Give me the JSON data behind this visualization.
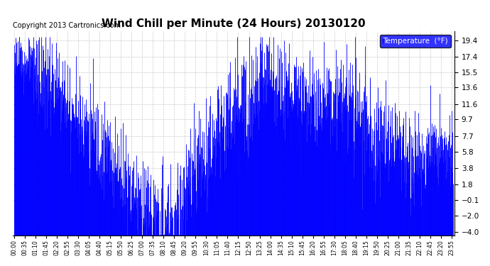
{
  "title": "Wind Chill per Minute (24 Hours) 20130120",
  "copyright_text": "Copyright 2013 Cartronics.com",
  "legend_label": "Temperature  (°F)",
  "yticks": [
    19.4,
    17.4,
    15.5,
    13.6,
    11.6,
    9.7,
    7.7,
    5.8,
    3.8,
    1.8,
    -0.1,
    -2.0,
    -4.0
  ],
  "ylim": [
    -4.5,
    20.5
  ],
  "line_color": "#0000FF",
  "background_color": "#FFFFFF",
  "plot_bg_color": "#FFFFFF",
  "title_fontsize": 11,
  "copyright_fontsize": 7,
  "grid_color": "#BBBBBB",
  "figsize": [
    6.9,
    3.75
  ],
  "dpi": 100
}
